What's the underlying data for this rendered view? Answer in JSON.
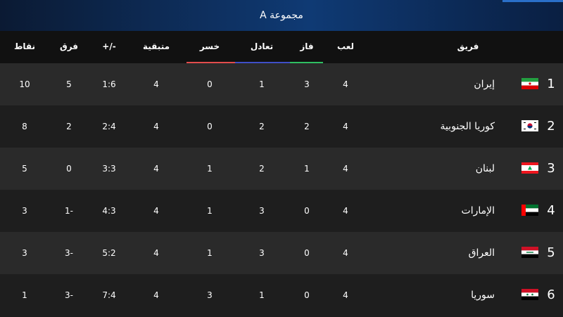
{
  "header": {
    "title": "مجموعة A"
  },
  "columns": {
    "team": "فريق",
    "played": "لعب",
    "won": "فاز",
    "drawn": "تعادل",
    "lost": "خسر",
    "remaining": "متبقية",
    "goals": "+/-",
    "diff": "فرق",
    "points": "نقاط"
  },
  "colors": {
    "won_line": "#2fbf62",
    "drawn_line": "#3f4fc8",
    "lost_line": "#e24c4c"
  },
  "rows": [
    {
      "rank": "1",
      "team": "إيران",
      "flag": "iran-flag-icon",
      "played": "4",
      "won": "3",
      "drawn": "1",
      "lost": "0",
      "remaining": "4",
      "goals": "1:6",
      "diff": "5",
      "points": "10"
    },
    {
      "rank": "2",
      "team": "كوريا الجنوبية",
      "flag": "south-korea-flag-icon",
      "played": "4",
      "won": "2",
      "drawn": "2",
      "lost": "0",
      "remaining": "4",
      "goals": "2:4",
      "diff": "2",
      "points": "8"
    },
    {
      "rank": "3",
      "team": "لبنان",
      "flag": "lebanon-flag-icon",
      "played": "4",
      "won": "1",
      "drawn": "2",
      "lost": "1",
      "remaining": "4",
      "goals": "3:3",
      "diff": "0",
      "points": "5"
    },
    {
      "rank": "4",
      "team": "الإمارات",
      "flag": "uae-flag-icon",
      "played": "4",
      "won": "0",
      "drawn": "3",
      "lost": "1",
      "remaining": "4",
      "goals": "4:3",
      "diff": "1-",
      "points": "3"
    },
    {
      "rank": "5",
      "team": "العراق",
      "flag": "iraq-flag-icon",
      "played": "4",
      "won": "0",
      "drawn": "3",
      "lost": "1",
      "remaining": "4",
      "goals": "5:2",
      "diff": "3-",
      "points": "3"
    },
    {
      "rank": "6",
      "team": "سوريا",
      "flag": "syria-flag-icon",
      "played": "4",
      "won": "0",
      "drawn": "1",
      "lost": "3",
      "remaining": "4",
      "goals": "7:4",
      "diff": "3-",
      "points": "1"
    }
  ]
}
